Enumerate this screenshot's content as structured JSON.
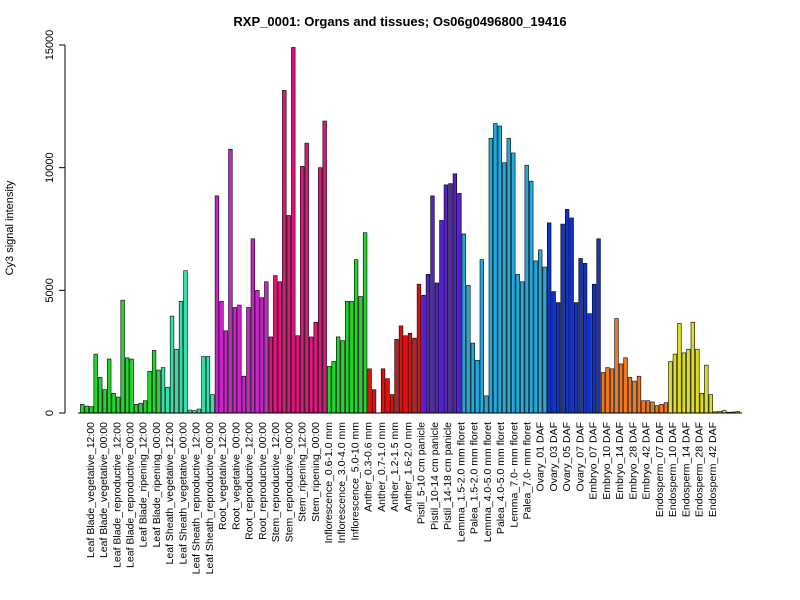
{
  "chart_data": {
    "type": "bar",
    "title": "RXP_0001: Organs and tissues; Os06g0496800_19416",
    "ylabel": "Cy3 signal intensity",
    "xlabel": "",
    "ylim": [
      0,
      15000
    ],
    "yticks": [
      0,
      5000,
      10000,
      15000
    ],
    "labeled_categories": [
      "Leaf Blade_vegetative_12:00",
      "Leaf Blade_vegetative_00:00",
      "Leaf Blade_reproductive_12:00",
      "Leaf Blade_reproductive_00:00",
      "Leaf Blade_ripening_12:00",
      "Leaf Blade_ripening_00:00",
      "Leaf Sheath_vegetative_12:00",
      "Leaf Sheath_vegetative_00:00",
      "Leaf Sheath_reproductive_12:00",
      "Leaf Sheath_reproductive_00:00",
      "Root_vegetative_12:00",
      "Root_vegetative_00:00",
      "Root_reproductive_12:00",
      "Root_reproductive_00:00",
      "Stem_reproductive_12:00",
      "Stem_reproductive_00:00",
      "Stem_ripening_12:00",
      "Stem_ripening_00:00",
      "Inflorescence_0.6-1.0 mm",
      "Inflorescence_3.0-4.0 mm",
      "Inflorescence_5.0-10 mm",
      "Anther_0.3-0.6 mm",
      "Anther_0.7-1.0 mm",
      "Anther_1.2-1.5 mm",
      "Anther_1.6-2.0 mm",
      "Pistil_5-10 cm panicle",
      "Pistil_10-14 cm panicle",
      "Pistil_14-18 cm panicle",
      "Lemma_1.5-2.0 mm floret",
      "Palea_1.5-2.0 mm floret",
      "Lemma_4.0-5.0 mm floret",
      "Palea_4.0-5.0 mm floret",
      "Lemma_7.0- mm floret",
      "Palea_7.0- mm floret",
      "Ovary_01 DAF",
      "Ovary_03 DAF",
      "Ovary_05 DAF",
      "Ovary_07 DAF",
      "Embryo_07 DAF",
      "Embryo_10 DAF",
      "Embryo_14 DAF",
      "Embryo_28 DAF",
      "Embryo_42 DAF",
      "Endosperm_07 DAF",
      "Endosperm_10 DAF",
      "Endosperm_14 DAF",
      "Endosperm_28 DAF",
      "Endosperm_42 DAF"
    ],
    "groups": [
      {
        "color": "#22d62b",
        "values": [
          350,
          280,
          260,
          2400,
          1450,
          950,
          2200,
          800,
          650,
          4600,
          2250,
          2200,
          350,
          400,
          500,
          1700,
          2550,
          1750
        ]
      },
      {
        "color": "#33e0a8",
        "values": [
          1850,
          1050,
          3950,
          2600,
          4550,
          5800,
          120,
          100,
          160,
          2300,
          2300,
          750
        ]
      },
      {
        "color": "#cc22cc",
        "values": [
          8850,
          4550,
          3350,
          10750,
          4300,
          4400,
          1500,
          4300,
          7100,
          5000,
          4700,
          5350
        ]
      },
      {
        "color": "#e0157a",
        "values": [
          3100,
          5600,
          5350,
          13150,
          8050,
          14900,
          3150,
          10050,
          11000,
          3100,
          3700,
          10000,
          11900
        ]
      },
      {
        "color": "#22d62b",
        "values": [
          1900,
          2100,
          3100,
          2950,
          4550,
          4550,
          6250,
          4750,
          7350
        ]
      },
      {
        "color": "#dd1111",
        "values": [
          1800,
          950,
          0,
          1800,
          1400,
          750,
          3000,
          3550,
          3150,
          3250,
          3050,
          5250
        ]
      },
      {
        "color": "#5522cc",
        "values": [
          4800,
          5650,
          8850,
          5300,
          7850,
          9300,
          9350,
          9750,
          8950
        ]
      },
      {
        "color": "#22aadd",
        "values": [
          7300,
          5200,
          2850,
          2150,
          6250,
          700,
          11200,
          11800,
          11700,
          10200,
          11200,
          10600,
          5650,
          5350,
          10100,
          9450,
          6200,
          6650,
          5950
        ]
      },
      {
        "color": "#1133cc",
        "values": [
          7750,
          4950,
          4500,
          7700,
          8300,
          7950,
          4500,
          6300,
          6100,
          4050,
          5250,
          7100
        ]
      },
      {
        "color": "#ee7722",
        "values": [
          1650,
          1850,
          1800,
          3850,
          2000,
          2250,
          1450,
          1300,
          1500,
          500,
          500,
          450,
          300,
          350,
          420
        ]
      },
      {
        "color": "#dddd22",
        "values": [
          2100,
          2400,
          3650,
          2450,
          2600,
          3700,
          2600,
          800,
          1950,
          750,
          50,
          60,
          100,
          30,
          40,
          60
        ]
      }
    ]
  }
}
